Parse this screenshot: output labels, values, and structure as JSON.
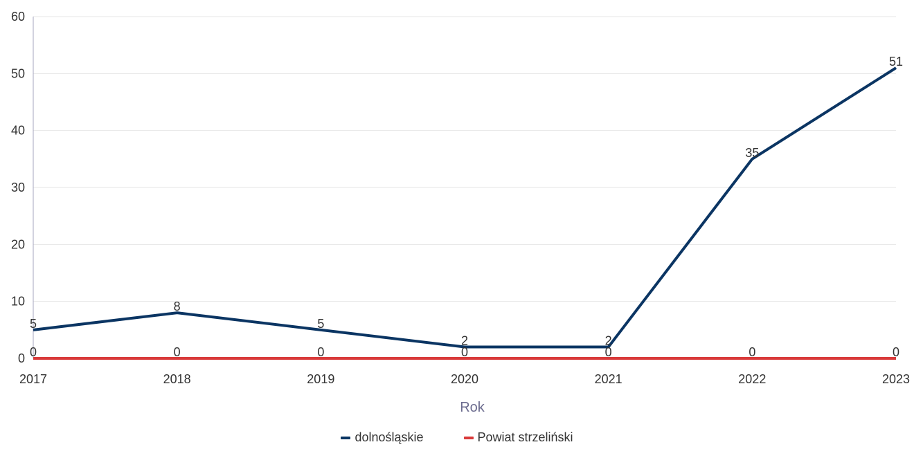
{
  "chart_data": {
    "type": "line",
    "xlabel": "Rok",
    "ylabel": "",
    "ylim": [
      0,
      60
    ],
    "yticks": [
      0,
      10,
      20,
      30,
      40,
      50,
      60
    ],
    "categories": [
      "2017",
      "2018",
      "2019",
      "2020",
      "2021",
      "2022",
      "2023"
    ],
    "grid": true,
    "legend_position": "bottom",
    "series": [
      {
        "name": "dolnośląskie",
        "color": "#0b3563",
        "values": [
          5,
          8,
          5,
          2,
          2,
          35,
          51
        ]
      },
      {
        "name": "Powiat strzeliński",
        "color": "#d93a3a",
        "values": [
          0,
          0,
          0,
          0,
          0,
          0,
          0
        ]
      }
    ]
  }
}
